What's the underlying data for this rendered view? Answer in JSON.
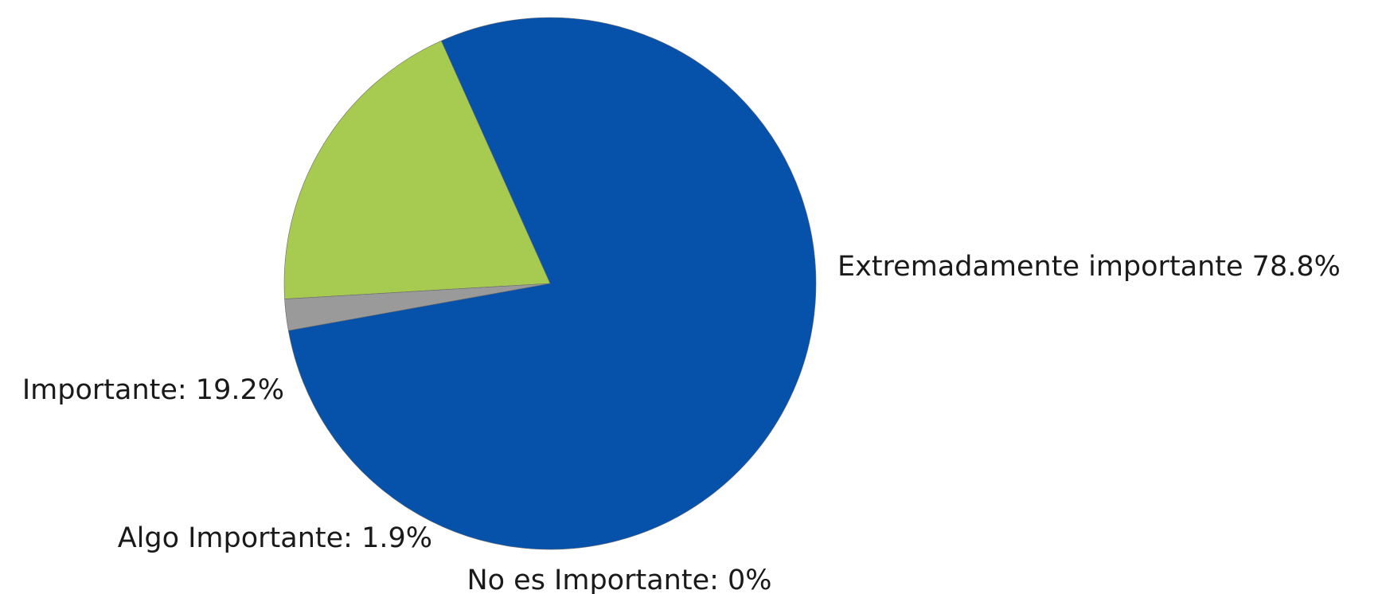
{
  "chart_data": {
    "type": "pie",
    "start_angle_deg": 190.2,
    "direction": "counterclockwise",
    "slices": [
      {
        "name": "Extremadamente importante",
        "value": 78.8,
        "color": "#0652AB",
        "label": "Extremadamente importante 78.8%"
      },
      {
        "name": "Importante",
        "value": 19.2,
        "color": "#A7CB50",
        "label": "Importante: 19.2%"
      },
      {
        "name": "Algo Importante",
        "value": 1.9,
        "color": "#9A9A9A",
        "label": "Algo Importante: 1.9%"
      },
      {
        "name": "No es Importante",
        "value": 0,
        "color": "#C8C8C8",
        "label": "No es Importante: 0%"
      }
    ]
  }
}
